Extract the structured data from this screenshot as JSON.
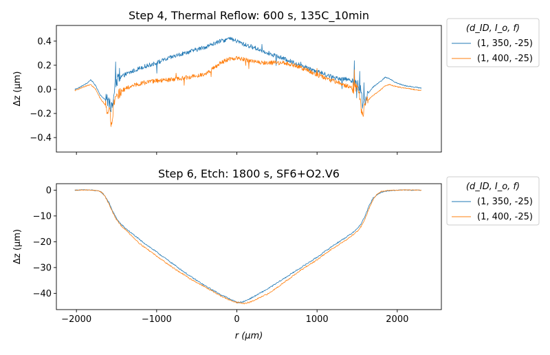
{
  "chart_data": [
    {
      "type": "line",
      "title": "Step 4, Thermal Reflow: 600 s, 135C_10min",
      "xlabel": "",
      "ylabel": "Δz (µm)",
      "xlim": [
        -2250,
        2550
      ],
      "ylim": [
        -0.52,
        0.53
      ],
      "xticks": [
        -2000,
        -1000,
        0,
        1000,
        2000
      ],
      "xtick_labels": [
        "",
        "",
        "",
        "",
        ""
      ],
      "yticks": [
        -0.4,
        -0.2,
        0.0,
        0.2,
        0.4
      ],
      "ytick_labels": [
        "−0.4",
        "−0.2",
        "0.0",
        "0.2",
        "0.4"
      ],
      "grid": false,
      "legend": {
        "placement": "outside-right-top",
        "title": "(d_ID, I_o, f)",
        "entries": [
          "(1, 350, -25)",
          "(1, 400, -25)"
        ]
      },
      "series": [
        {
          "name": "(1, 350, -25)",
          "color": "#1f77b4",
          "x": [
            -2020,
            -1950,
            -1870,
            -1820,
            -1760,
            -1700,
            -1650,
            -1600,
            -1580,
            -1560,
            -1540,
            -1520,
            -1500,
            -1450,
            -1400,
            -1300,
            -1200,
            -1000,
            -800,
            -600,
            -400,
            -200,
            -100,
            0,
            100,
            200,
            400,
            600,
            800,
            1000,
            1200,
            1400,
            1500,
            1530,
            1550,
            1560,
            1580,
            1620,
            1700,
            1800,
            1850,
            1900,
            2000,
            2100,
            2200,
            2300
          ],
          "y": [
            0.0,
            0.02,
            0.05,
            0.08,
            0.03,
            -0.05,
            -0.08,
            -0.1,
            -0.12,
            -0.16,
            -0.1,
            0.05,
            0.07,
            0.1,
            0.12,
            0.15,
            0.18,
            0.22,
            0.27,
            0.31,
            0.35,
            0.4,
            0.42,
            0.4,
            0.37,
            0.35,
            0.3,
            0.25,
            0.2,
            0.15,
            0.1,
            0.08,
            0.06,
            0.02,
            -0.02,
            -0.1,
            -0.13,
            -0.05,
            0.02,
            0.07,
            0.1,
            0.09,
            0.05,
            0.03,
            0.02,
            0.01
          ]
        },
        {
          "name": "(1, 400, -25)",
          "color": "#ff7f0e",
          "x": [
            -2020,
            -1950,
            -1870,
            -1820,
            -1760,
            -1700,
            -1650,
            -1600,
            -1580,
            -1560,
            -1540,
            -1520,
            -1500,
            -1450,
            -1400,
            -1300,
            -1200,
            -1000,
            -800,
            -600,
            -400,
            -300,
            -200,
            -100,
            0,
            100,
            200,
            400,
            600,
            800,
            1000,
            1200,
            1400,
            1500,
            1530,
            1550,
            1560,
            1580,
            1620,
            1700,
            1800,
            1850,
            1900,
            2000,
            2100,
            2200,
            2300
          ],
          "y": [
            -0.01,
            0.01,
            0.03,
            0.04,
            0.0,
            -0.08,
            -0.12,
            -0.18,
            -0.2,
            -0.25,
            -0.15,
            -0.08,
            -0.05,
            -0.02,
            0.0,
            0.03,
            0.05,
            0.07,
            0.08,
            0.1,
            0.13,
            0.17,
            0.22,
            0.25,
            0.26,
            0.25,
            0.23,
            0.22,
            0.22,
            0.18,
            0.12,
            0.07,
            0.02,
            0.0,
            -0.05,
            -0.12,
            -0.2,
            -0.18,
            -0.1,
            -0.05,
            0.0,
            0.03,
            0.04,
            0.02,
            0.01,
            0.0,
            -0.01
          ]
        }
      ]
    },
    {
      "type": "line",
      "title": "Step 6, Etch: 1800 s, SF6+O2.V6",
      "xlabel": "r (µm)",
      "ylabel": "Δz (µm)",
      "xlim": [
        -2250,
        2550
      ],
      "ylim": [
        -46.3,
        2.5
      ],
      "xticks": [
        -2000,
        -1000,
        0,
        1000,
        2000
      ],
      "xtick_labels": [
        "−2000",
        "−1000",
        "0",
        "1000",
        "2000"
      ],
      "yticks": [
        -40,
        -30,
        -20,
        -10,
        0
      ],
      "ytick_labels": [
        "−40",
        "−30",
        "−20",
        "−10",
        "0"
      ],
      "grid": false,
      "legend": {
        "placement": "outside-right-top",
        "title": "(d_ID, I_o, f)",
        "entries": [
          "(1, 350, -25)",
          "(1, 400, -25)"
        ]
      },
      "series": [
        {
          "name": "(1, 350, -25)",
          "color": "#1f77b4",
          "x": [
            -2020,
            -1900,
            -1800,
            -1700,
            -1650,
            -1600,
            -1550,
            -1500,
            -1450,
            -1400,
            -1300,
            -1200,
            -1000,
            -800,
            -600,
            -400,
            -200,
            -100,
            0,
            50,
            100,
            200,
            400,
            600,
            800,
            1000,
            1200,
            1400,
            1500,
            1550,
            1600,
            1650,
            1700,
            1800,
            1900,
            2000,
            2100,
            2200,
            2300
          ],
          "y": [
            0.0,
            0.1,
            0.0,
            -0.5,
            -2.0,
            -4.5,
            -8.0,
            -11.0,
            -13.0,
            -14.5,
            -17.0,
            -19.5,
            -24.0,
            -28.5,
            -33.0,
            -37.0,
            -40.5,
            -42.0,
            -43.5,
            -43.5,
            -43.0,
            -41.5,
            -38.0,
            -34.0,
            -30.0,
            -26.0,
            -21.5,
            -17.5,
            -15.0,
            -13.0,
            -10.0,
            -6.0,
            -3.0,
            -0.8,
            -0.2,
            0.0,
            0.1,
            0.0,
            0.0
          ]
        },
        {
          "name": "(1, 400, -25)",
          "color": "#ff7f0e",
          "x": [
            -2020,
            -1900,
            -1800,
            -1700,
            -1650,
            -1600,
            -1550,
            -1500,
            -1450,
            -1400,
            -1300,
            -1200,
            -1000,
            -800,
            -600,
            -400,
            -200,
            -100,
            0,
            100,
            150,
            200,
            400,
            600,
            800,
            1000,
            1200,
            1400,
            1500,
            1550,
            1600,
            1650,
            1700,
            1750,
            1800,
            1900,
            2000,
            2100,
            2200,
            2300
          ],
          "y": [
            0.0,
            0.1,
            0.0,
            -0.5,
            -2.0,
            -5.0,
            -8.5,
            -11.5,
            -13.5,
            -15.0,
            -18.0,
            -21.0,
            -25.5,
            -30.0,
            -34.0,
            -37.5,
            -41.0,
            -42.5,
            -43.5,
            -44.0,
            -43.5,
            -43.0,
            -40.0,
            -35.5,
            -31.0,
            -27.0,
            -22.5,
            -18.5,
            -16.0,
            -14.0,
            -11.0,
            -7.0,
            -3.5,
            -1.5,
            -0.5,
            -0.1,
            0.0,
            0.1,
            0.0,
            0.0
          ]
        }
      ]
    }
  ]
}
